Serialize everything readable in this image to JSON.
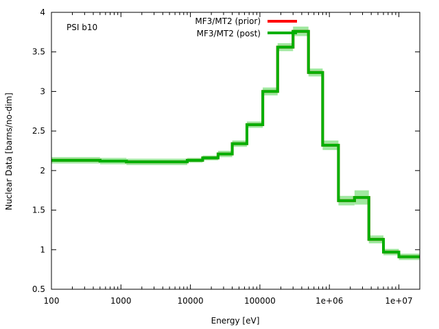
{
  "chart_data": {
    "type": "line",
    "title": "",
    "annotation": "PSI b10",
    "xlabel": "Energy [eV]",
    "ylabel": "Nuclear Data [barns/no-dim]",
    "xscale": "log",
    "xlim": [
      100,
      20000000
    ],
    "ylim": [
      0.5,
      4
    ],
    "grid": false,
    "legend_position": "top-center",
    "x_ticks": [
      100,
      1000,
      10000,
      100000,
      1000000,
      10000000
    ],
    "x_tick_labels": [
      "100",
      "1000",
      "10000",
      "100000",
      "1e+06",
      "1e+07"
    ],
    "y_ticks": [
      0.5,
      1,
      1.5,
      2,
      2.5,
      3,
      3.5,
      4
    ],
    "y_tick_labels": [
      "0.5",
      "1",
      "1.5",
      "2",
      "2.5",
      "3",
      "3.5",
      "4"
    ],
    "bin_edges": [
      100,
      500,
      1200,
      9000,
      15000,
      25000,
      40000,
      65000,
      110000,
      180000,
      300000,
      500000,
      800000,
      1350000,
      2300000,
      3700000,
      6000000,
      10000000,
      20000000
    ],
    "series": [
      {
        "name": "MF3/MT2 (prior)",
        "color": "#ff0000",
        "values": [
          2.13,
          2.12,
          2.11,
          2.13,
          2.16,
          2.21,
          2.34,
          2.58,
          3.0,
          3.56,
          3.76,
          3.24,
          2.32,
          1.62,
          1.66,
          1.13,
          0.97,
          0.91
        ]
      },
      {
        "name": "MF3/MT2 (post)",
        "color": "#00b000",
        "uncertainty_color": "#a0e8a0",
        "values": [
          2.13,
          2.12,
          2.11,
          2.13,
          2.16,
          2.21,
          2.34,
          2.58,
          3.0,
          3.56,
          3.76,
          3.24,
          2.32,
          1.62,
          1.66,
          1.13,
          0.97,
          0.91
        ],
        "uncertainty": [
          0.04,
          0.04,
          0.04,
          0.03,
          0.03,
          0.04,
          0.04,
          0.04,
          0.05,
          0.05,
          0.06,
          0.05,
          0.06,
          0.06,
          0.09,
          0.05,
          0.04,
          0.04
        ]
      }
    ]
  }
}
